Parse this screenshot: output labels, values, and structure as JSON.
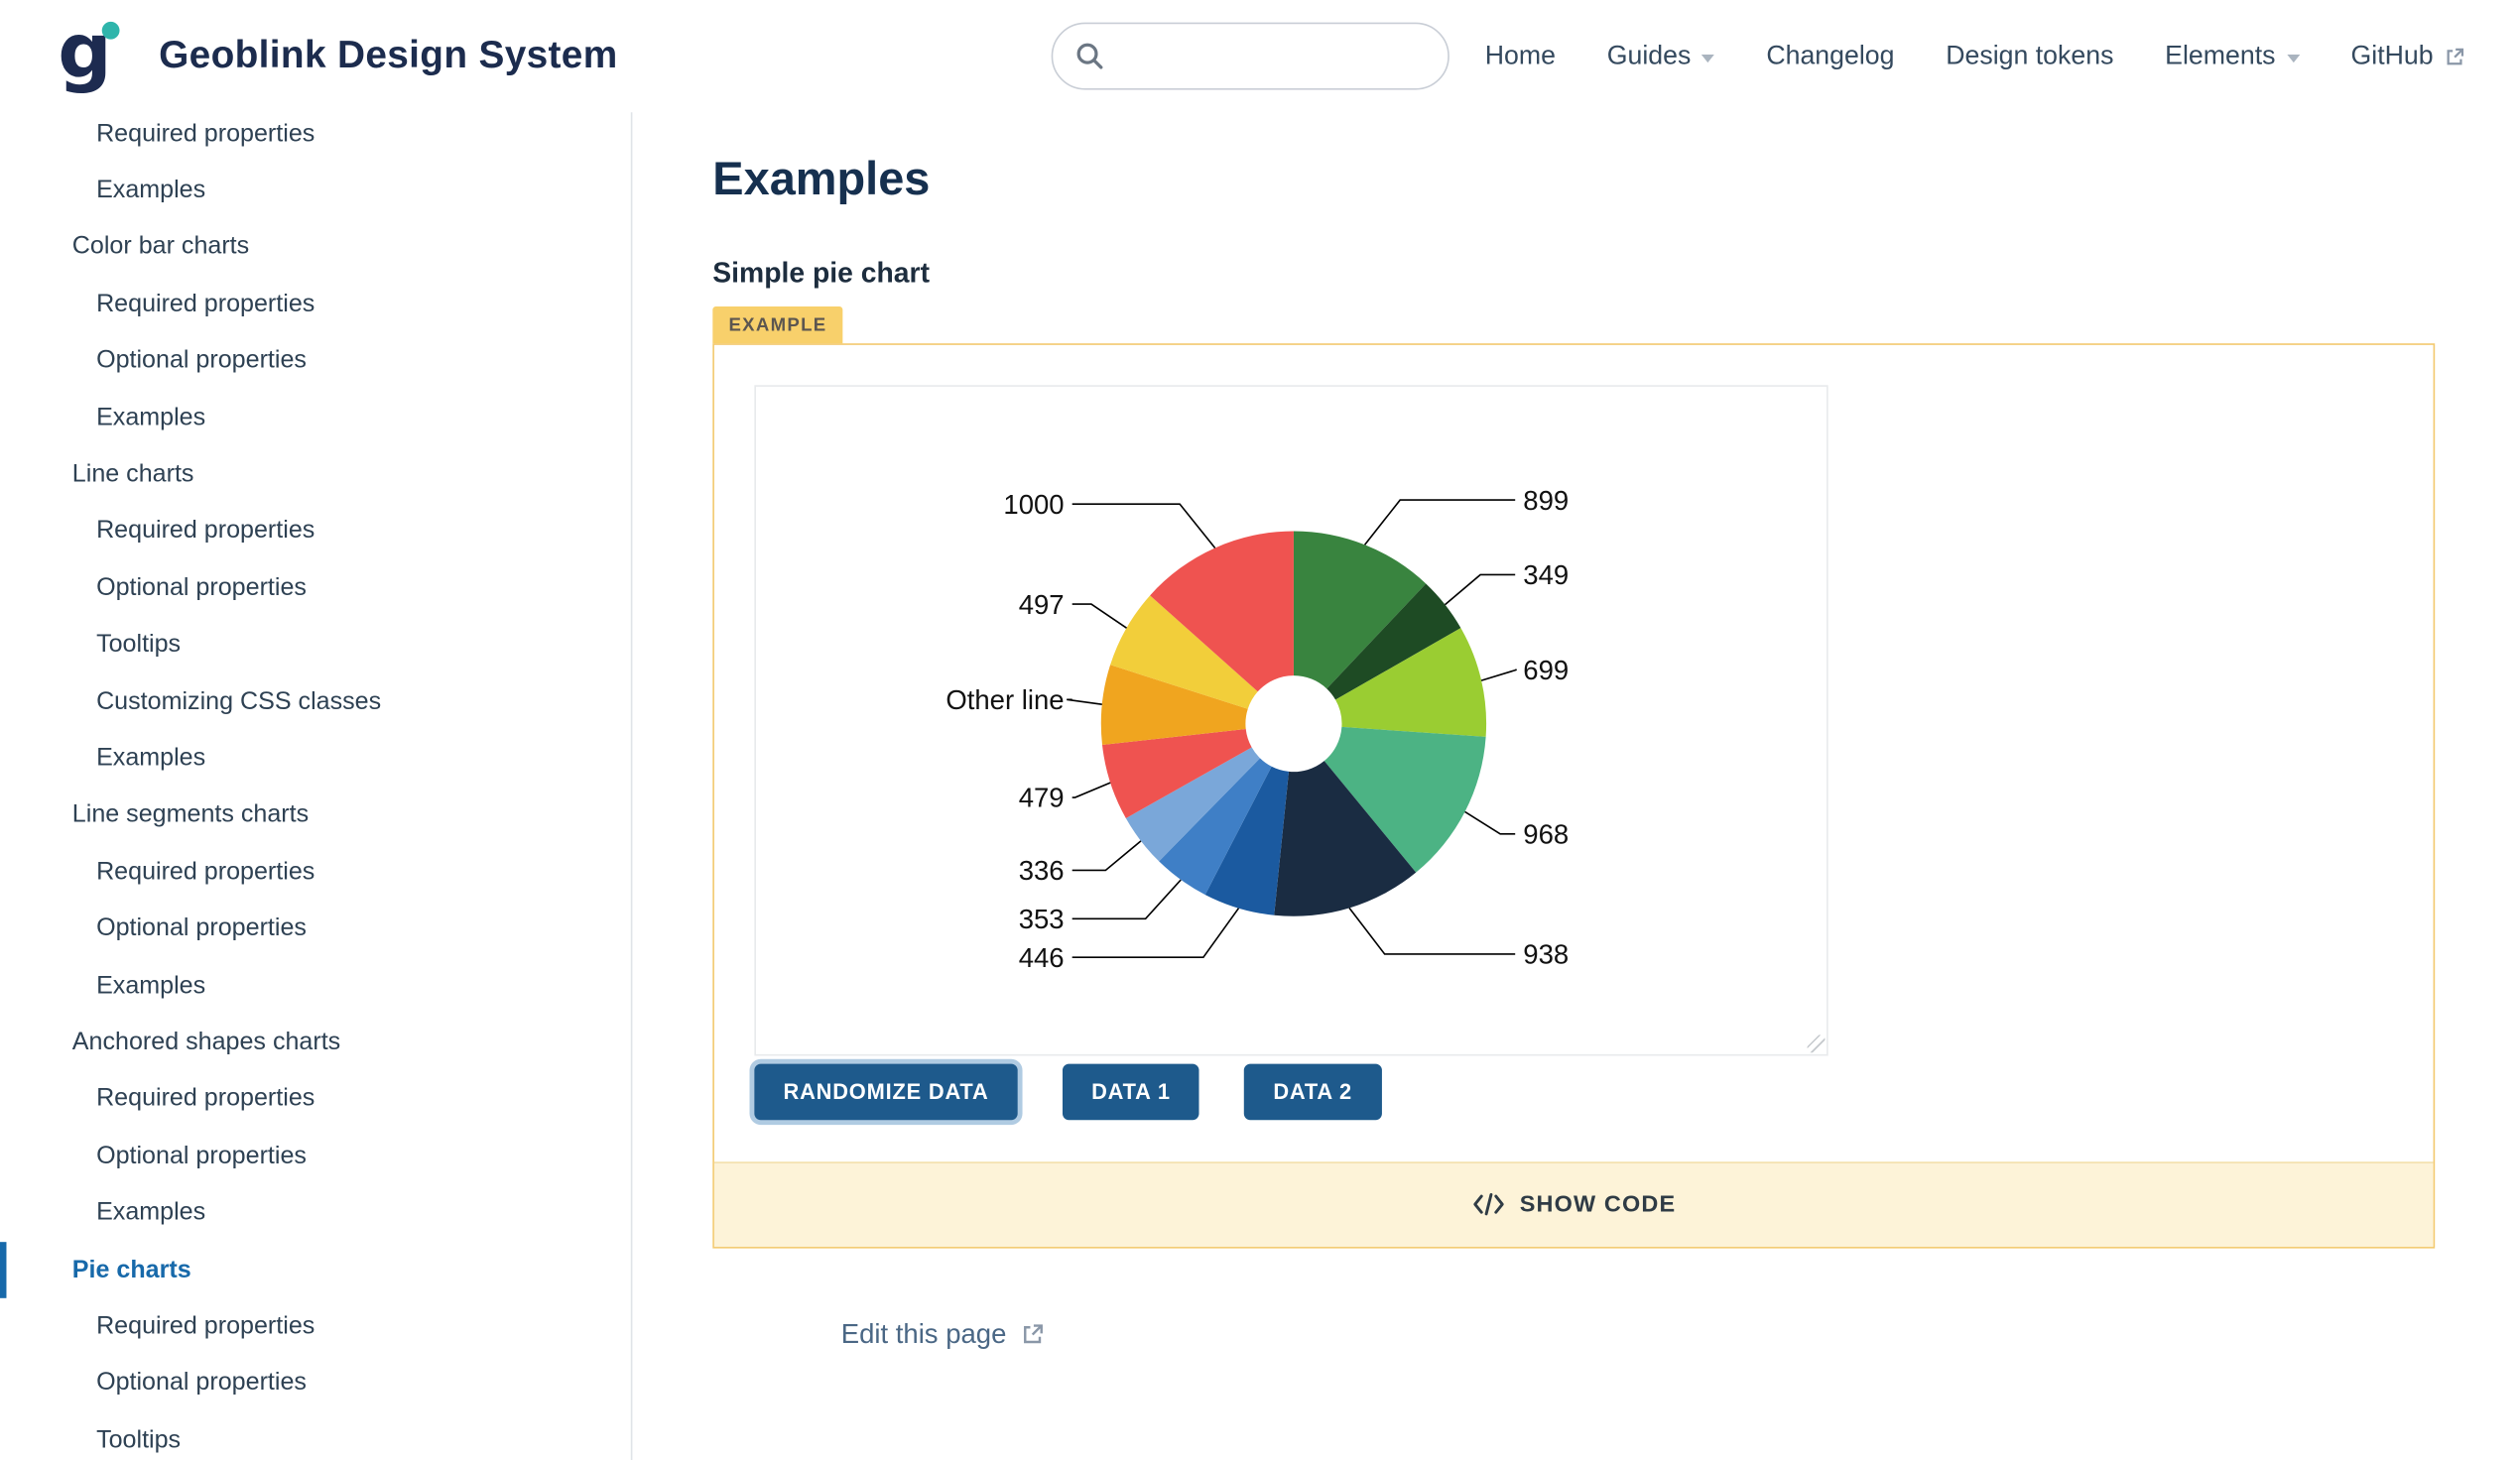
{
  "header": {
    "brand": "Geoblink Design System",
    "search_placeholder": "",
    "nav": [
      {
        "label": "Home",
        "dropdown": false,
        "external": false
      },
      {
        "label": "Guides",
        "dropdown": true,
        "external": false
      },
      {
        "label": "Changelog",
        "dropdown": false,
        "external": false
      },
      {
        "label": "Design tokens",
        "dropdown": false,
        "external": false
      },
      {
        "label": "Elements",
        "dropdown": true,
        "external": false
      },
      {
        "label": "GitHub",
        "dropdown": false,
        "external": true
      }
    ]
  },
  "icons": {
    "logo": "geoblink-logo",
    "search": "search-icon",
    "dropdown": "chevron-down-icon",
    "external": "external-link-icon",
    "code": "code-icon"
  },
  "sidebar": {
    "items": [
      {
        "label": "Required properties",
        "level": 2,
        "active": false
      },
      {
        "label": "Examples",
        "level": 2,
        "active": false
      },
      {
        "label": "Color bar charts",
        "level": 1,
        "active": false
      },
      {
        "label": "Required properties",
        "level": 2,
        "active": false
      },
      {
        "label": "Optional properties",
        "level": 2,
        "active": false
      },
      {
        "label": "Examples",
        "level": 2,
        "active": false
      },
      {
        "label": "Line charts",
        "level": 1,
        "active": false
      },
      {
        "label": "Required properties",
        "level": 2,
        "active": false
      },
      {
        "label": "Optional properties",
        "level": 2,
        "active": false
      },
      {
        "label": "Tooltips",
        "level": 2,
        "active": false
      },
      {
        "label": "Customizing CSS classes",
        "level": 2,
        "active": false
      },
      {
        "label": "Examples",
        "level": 2,
        "active": false
      },
      {
        "label": "Line segments charts",
        "level": 1,
        "active": false
      },
      {
        "label": "Required properties",
        "level": 2,
        "active": false
      },
      {
        "label": "Optional properties",
        "level": 2,
        "active": false
      },
      {
        "label": "Examples",
        "level": 2,
        "active": false
      },
      {
        "label": "Anchored shapes charts",
        "level": 1,
        "active": false
      },
      {
        "label": "Required properties",
        "level": 2,
        "active": false
      },
      {
        "label": "Optional properties",
        "level": 2,
        "active": false
      },
      {
        "label": "Examples",
        "level": 2,
        "active": false
      },
      {
        "label": "Pie charts",
        "level": 1,
        "active": true
      },
      {
        "label": "Required properties",
        "level": 2,
        "active": false
      },
      {
        "label": "Optional properties",
        "level": 2,
        "active": false
      },
      {
        "label": "Tooltips",
        "level": 2,
        "active": false
      }
    ]
  },
  "main": {
    "title": "Examples",
    "section_title": "Simple pie chart",
    "example_badge": "EXAMPLE",
    "buttons": [
      {
        "label": "RANDOMIZE DATA",
        "focused": true
      },
      {
        "label": "DATA 1",
        "focused": false
      },
      {
        "label": "DATA 2",
        "focused": false
      }
    ],
    "show_code_label": "SHOW CODE",
    "edit_link": "Edit this page"
  },
  "chart_data": {
    "type": "pie",
    "title": "",
    "inner_radius_ratio": 0.25,
    "start_angle_deg": 0,
    "clockwise": true,
    "label_color": "#111111",
    "leader_line_color": "#000000",
    "slices": [
      {
        "label": "899",
        "value": 899,
        "color": "#39843f"
      },
      {
        "label": "349",
        "value": 349,
        "color": "#1e4b24"
      },
      {
        "label": "699",
        "value": 699,
        "color": "#9acd32"
      },
      {
        "label": "968",
        "value": 968,
        "color": "#4cb384"
      },
      {
        "label": "938",
        "value": 938,
        "color": "#1a2c42"
      },
      {
        "label": "446",
        "value": 446,
        "color": "#1b5aa0"
      },
      {
        "label": "353",
        "value": 353,
        "color": "#3f7fc6"
      },
      {
        "label": "336",
        "value": 336,
        "color": "#7aa7d9"
      },
      {
        "label": "479",
        "value": 479,
        "color": "#ef5350"
      },
      {
        "label": "Other line",
        "value": 500,
        "color": "#f0a51f"
      },
      {
        "label": "497",
        "value": 497,
        "color": "#f2ce3a"
      },
      {
        "label": "1000",
        "value": 1000,
        "color": "#ef5350"
      }
    ]
  }
}
